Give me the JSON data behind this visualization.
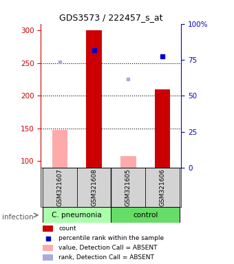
{
  "title": "GDS3573 / 222457_s_at",
  "samples": [
    "GSM321607",
    "GSM321608",
    "GSM321605",
    "GSM321606"
  ],
  "counts": [
    null,
    300,
    null,
    210
  ],
  "counts_absent": [
    148,
    null,
    108,
    null
  ],
  "percentile_present": [
    null,
    270,
    null,
    260
  ],
  "percentile_absent": [
    252,
    null,
    225,
    null
  ],
  "ylim_left": [
    90,
    310
  ],
  "ylim_right": [
    0,
    100
  ],
  "yticks_left": [
    100,
    150,
    200,
    250,
    300
  ],
  "yticks_right": [
    0,
    25,
    50,
    75,
    100
  ],
  "ytick_labels_right": [
    "0",
    "25",
    "50",
    "75",
    "100%"
  ],
  "bg_color_fig": "#ffffff",
  "left_axis_color": "#cc0000",
  "right_axis_color": "#0000cc",
  "bar_color_present": "#cc0000",
  "bar_color_absent": "#ffaaaa",
  "dot_color_present": "#0000cc",
  "dot_color_absent": "#aaaadd",
  "cpneumonia_color": "#aaffaa",
  "control_color": "#66dd66",
  "grid_lines": [
    150,
    200,
    250
  ],
  "group_label": "infection",
  "legend_items": [
    {
      "color": "#cc0000",
      "type": "patch",
      "label": "count"
    },
    {
      "color": "#0000cc",
      "type": "square",
      "label": "percentile rank within the sample"
    },
    {
      "color": "#ffaaaa",
      "type": "patch",
      "label": "value, Detection Call = ABSENT"
    },
    {
      "color": "#aaaadd",
      "type": "patch",
      "label": "rank, Detection Call = ABSENT"
    }
  ]
}
